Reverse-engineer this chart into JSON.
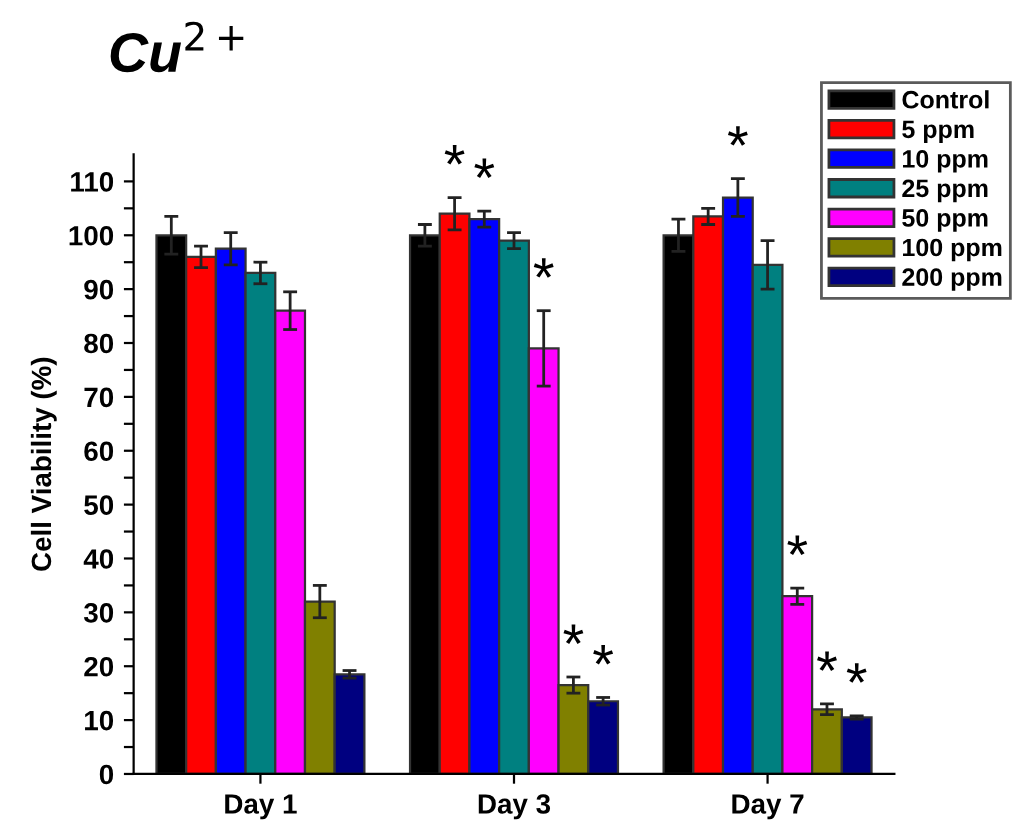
{
  "chart_data": {
    "type": "bar",
    "title": "Cu$^{2+}$",
    "ylabel": "Cell Viability (%)",
    "categories": [
      "Day 1",
      "Day 3",
      "Day 7"
    ],
    "series": [
      {
        "name": "Control",
        "color": "#000000",
        "values": [
          100,
          100,
          100
        ],
        "errors": [
          3.5,
          2,
          3
        ],
        "value_labels": [
          null,
          null,
          null
        ]
      },
      {
        "name": "5 ppm",
        "color": "#ff0000",
        "values": [
          96,
          104,
          103.5
        ],
        "errors": [
          2,
          3,
          1.5
        ],
        "value_labels": [
          null,
          "*",
          null
        ]
      },
      {
        "name": "10 ppm",
        "color": "#0000ff",
        "values": [
          97.5,
          103,
          107
        ],
        "errors": [
          3,
          1.5,
          3.5
        ],
        "value_labels": [
          null,
          "*",
          "*"
        ]
      },
      {
        "name": "25 ppm",
        "color": "#008080",
        "values": [
          93,
          99,
          94.5
        ],
        "errors": [
          2,
          1.5,
          4.5
        ],
        "value_labels": [
          null,
          null,
          null
        ]
      },
      {
        "name": "50 ppm",
        "color": "#ff00ff",
        "values": [
          86,
          79,
          33
        ],
        "errors": [
          3.5,
          7,
          1.5
        ],
        "value_labels": [
          null,
          "*",
          "*"
        ]
      },
      {
        "name": "100 ppm",
        "color": "#808000",
        "values": [
          32,
          16.5,
          12
        ],
        "errors": [
          3,
          1.5,
          1
        ],
        "value_labels": [
          null,
          "*",
          "*"
        ]
      },
      {
        "name": "200 ppm",
        "color": "#000080",
        "values": [
          18.5,
          13.5,
          10.5
        ],
        "errors": [
          0.7,
          0.7,
          0.3
        ],
        "value_labels": [
          null,
          "*",
          "*"
        ]
      }
    ],
    "ylim": [
      0,
      115
    ],
    "yticks": [
      0,
      {
        "value": 5,
        "label": null
      },
      10,
      {
        "value": 15,
        "label": null
      },
      20,
      {
        "value": 25,
        "label": null
      },
      30,
      {
        "value": 35,
        "label": null
      },
      40,
      {
        "value": 45,
        "label": null
      },
      50,
      {
        "value": 55,
        "label": null
      },
      60,
      {
        "value": 65,
        "label": null
      },
      70,
      {
        "value": 75,
        "label": null
      },
      80,
      {
        "value": 85,
        "label": null
      },
      90,
      {
        "value": 95,
        "label": null
      },
      100,
      {
        "value": 105,
        "label": null
      },
      110
    ],
    "grid": false,
    "legend": "top right"
  }
}
